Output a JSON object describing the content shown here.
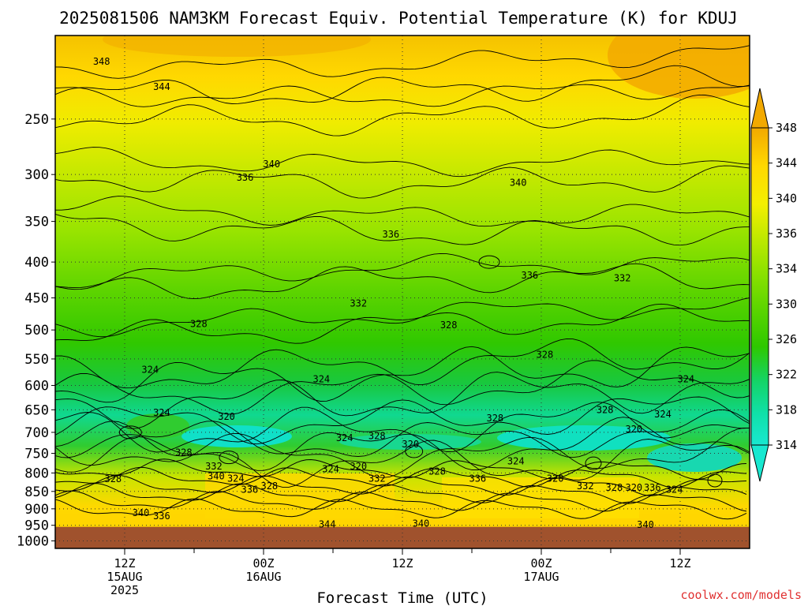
{
  "chart_data": {
    "type": "heatmap",
    "title": "2025081506 NAM3KM Forecast Equiv. Potential Temperature (K) for KDUJ",
    "xlabel": "Forecast Time (UTC)",
    "ylabel": "",
    "y_scale": "log",
    "y_inverted": true,
    "ylim": [
      1025,
      190
    ],
    "y_ticks": [
      250,
      300,
      350,
      400,
      450,
      500,
      550,
      600,
      650,
      700,
      750,
      800,
      850,
      900,
      950,
      1000
    ],
    "x_ticks": [
      {
        "hour": 12,
        "line1": "12Z",
        "line2": "15AUG",
        "line3": "2025"
      },
      {
        "hour": 24,
        "line1": "00Z",
        "line2": "16AUG",
        "line3": ""
      },
      {
        "hour": 36,
        "line1": "12Z",
        "line2": "",
        "line3": ""
      },
      {
        "hour": 48,
        "line1": "00Z",
        "line2": "17AUG",
        "line3": ""
      },
      {
        "hour": 60,
        "line1": "12Z",
        "line2": "",
        "line3": ""
      }
    ],
    "xlim": [
      6,
      66
    ],
    "grid": true,
    "surface_pressure": 955,
    "colorbar": {
      "labels": [
        348,
        344,
        340,
        336,
        334,
        330,
        326,
        322,
        318,
        314
      ],
      "colors": [
        "#f2a900",
        "#ffd800",
        "#f4ef00",
        "#b9e800",
        "#86e000",
        "#58d400",
        "#2ec800",
        "#14d468",
        "#10e0a8",
        "#18e8d0"
      ]
    },
    "contour_levels": [
      314,
      318,
      320,
      322,
      324,
      328,
      332,
      336,
      340,
      344,
      348
    ],
    "contour_labels": [
      {
        "v": 348,
        "h": 10.0,
        "p": 207
      },
      {
        "v": 344,
        "h": 15.2,
        "p": 225
      },
      {
        "v": 340,
        "h": 24.7,
        "p": 290
      },
      {
        "v": 336,
        "h": 22.4,
        "p": 303
      },
      {
        "v": 340,
        "h": 46.0,
        "p": 308
      },
      {
        "v": 336,
        "h": 35.0,
        "p": 365
      },
      {
        "v": 336,
        "h": 47.0,
        "p": 418
      },
      {
        "v": 332,
        "h": 55.0,
        "p": 422
      },
      {
        "v": 332,
        "h": 32.2,
        "p": 458
      },
      {
        "v": 328,
        "h": 18.4,
        "p": 490
      },
      {
        "v": 328,
        "h": 40.0,
        "p": 492
      },
      {
        "v": 328,
        "h": 48.3,
        "p": 542
      },
      {
        "v": 324,
        "h": 14.2,
        "p": 570
      },
      {
        "v": 324,
        "h": 29.0,
        "p": 588
      },
      {
        "v": 324,
        "h": 60.5,
        "p": 588
      },
      {
        "v": 324,
        "h": 15.2,
        "p": 656
      },
      {
        "v": 320,
        "h": 20.8,
        "p": 665
      },
      {
        "v": 328,
        "h": 44.0,
        "p": 668
      },
      {
        "v": 328,
        "h": 53.5,
        "p": 650
      },
      {
        "v": 324,
        "h": 58.5,
        "p": 660
      },
      {
        "v": 320,
        "h": 56.0,
        "p": 693
      },
      {
        "v": 324,
        "h": 31.0,
        "p": 713
      },
      {
        "v": 328,
        "h": 33.8,
        "p": 708
      },
      {
        "v": 320,
        "h": 36.7,
        "p": 728
      },
      {
        "v": 328,
        "h": 17.1,
        "p": 748
      },
      {
        "v": 324,
        "h": 45.8,
        "p": 770
      },
      {
        "v": 332,
        "h": 19.7,
        "p": 783
      },
      {
        "v": 324,
        "h": 29.8,
        "p": 790
      },
      {
        "v": 320,
        "h": 32.2,
        "p": 783
      },
      {
        "v": 328,
        "h": 39.0,
        "p": 796
      },
      {
        "v": 340,
        "h": 19.9,
        "p": 808
      },
      {
        "v": 324,
        "h": 21.6,
        "p": 815
      },
      {
        "v": 332,
        "h": 33.8,
        "p": 815
      },
      {
        "v": 336,
        "h": 42.5,
        "p": 815
      },
      {
        "v": 320,
        "h": 49.2,
        "p": 815
      },
      {
        "v": 328,
        "h": 11.0,
        "p": 816
      },
      {
        "v": 328,
        "h": 24.5,
        "p": 835
      },
      {
        "v": 336,
        "h": 22.8,
        "p": 845
      },
      {
        "v": 332,
        "h": 51.8,
        "p": 835
      },
      {
        "v": 328,
        "h": 54.3,
        "p": 840
      },
      {
        "v": 320,
        "h": 56.0,
        "p": 840
      },
      {
        "v": 336,
        "h": 57.6,
        "p": 840
      },
      {
        "v": 324,
        "h": 59.5,
        "p": 845
      },
      {
        "v": 340,
        "h": 13.4,
        "p": 912
      },
      {
        "v": 336,
        "h": 15.2,
        "p": 922
      },
      {
        "v": 344,
        "h": 29.5,
        "p": 947
      },
      {
        "v": 340,
        "h": 37.6,
        "p": 945
      },
      {
        "v": 340,
        "h": 57.0,
        "p": 948
      }
    ]
  },
  "watermark": "coolwx.com/models",
  "colors": {
    "ground": "#a0522d",
    "watermark": "#e03030",
    "line": "#000000"
  }
}
